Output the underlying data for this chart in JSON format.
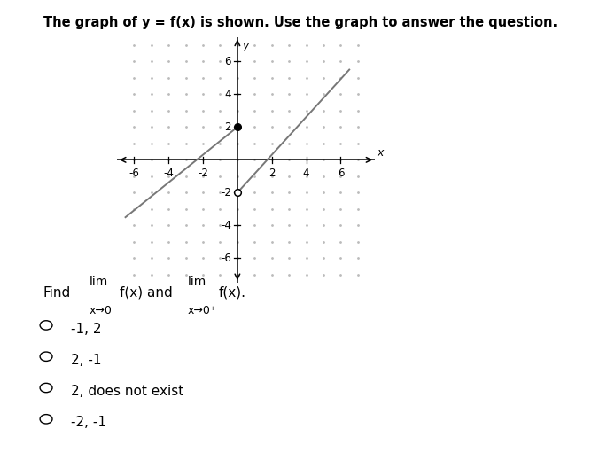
{
  "title": "The graph of y = f(x) is shown. Use the graph to answer the question.",
  "title_fontsize": 10.5,
  "title_color": "#000000",
  "xlim": [
    -7,
    8
  ],
  "ylim": [
    -7.5,
    7.5
  ],
  "xticks": [
    -6,
    -4,
    -2,
    2,
    4,
    6
  ],
  "yticks": [
    -6,
    -4,
    -2,
    2,
    4,
    6
  ],
  "tick_labels_fontsize": 8.5,
  "axis_color": "#000000",
  "dot_grid_color": "#bbbbbb",
  "line_color": "#777777",
  "line_width": 1.4,
  "left_line": {
    "x": [
      -6.5,
      0
    ],
    "y": [
      -3.5,
      2
    ],
    "closed_end_x": 0,
    "closed_end_y": 2
  },
  "right_line": {
    "x": [
      0,
      6.5
    ],
    "y": [
      -2,
      5.5
    ],
    "open_end_x": 0,
    "open_end_y": -2
  },
  "options": [
    "-1, 2",
    "2, -1",
    "2, does not exist",
    "-2, -1"
  ],
  "option_fontsize": 11,
  "bg_color": "#ffffff"
}
